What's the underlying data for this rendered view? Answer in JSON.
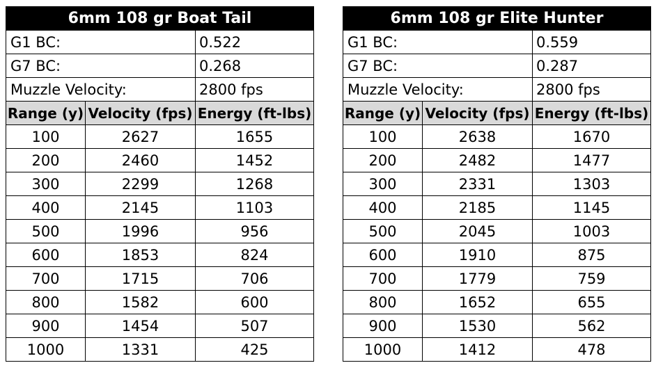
{
  "tables": [
    {
      "title": "6mm 108 gr Boat Tail",
      "specs": [
        {
          "label": "G1 BC:",
          "value": "0.522"
        },
        {
          "label": "G7 BC:",
          "value": "0.268"
        },
        {
          "label": "Muzzle Velocity:",
          "value": "2800 fps"
        }
      ],
      "columns": [
        "Range (y)",
        "Velocity (fps)",
        "Energy (ft-lbs)"
      ],
      "rows": [
        [
          "100",
          "2627",
          "1655"
        ],
        [
          "200",
          "2460",
          "1452"
        ],
        [
          "300",
          "2299",
          "1268"
        ],
        [
          "400",
          "2145",
          "1103"
        ],
        [
          "500",
          "1996",
          "956"
        ],
        [
          "600",
          "1853",
          "824"
        ],
        [
          "700",
          "1715",
          "706"
        ],
        [
          "800",
          "1582",
          "600"
        ],
        [
          "900",
          "1454",
          "507"
        ],
        [
          "1000",
          "1331",
          "425"
        ]
      ]
    },
    {
      "title": "6mm 108 gr Elite Hunter",
      "specs": [
        {
          "label": "G1 BC:",
          "value": "0.559"
        },
        {
          "label": "G7 BC:",
          "value": "0.287"
        },
        {
          "label": "Muzzle Velocity:",
          "value": "2800 fps"
        }
      ],
      "columns": [
        "Range (y)",
        "Velocity (fps)",
        "Energy (ft-lbs)"
      ],
      "rows": [
        [
          "100",
          "2638",
          "1670"
        ],
        [
          "200",
          "2482",
          "1477"
        ],
        [
          "300",
          "2331",
          "1303"
        ],
        [
          "400",
          "2185",
          "1145"
        ],
        [
          "500",
          "2045",
          "1003"
        ],
        [
          "600",
          "1910",
          "875"
        ],
        [
          "700",
          "1779",
          "759"
        ],
        [
          "800",
          "1652",
          "655"
        ],
        [
          "900",
          "1530",
          "562"
        ],
        [
          "1000",
          "1412",
          "478"
        ]
      ]
    }
  ]
}
